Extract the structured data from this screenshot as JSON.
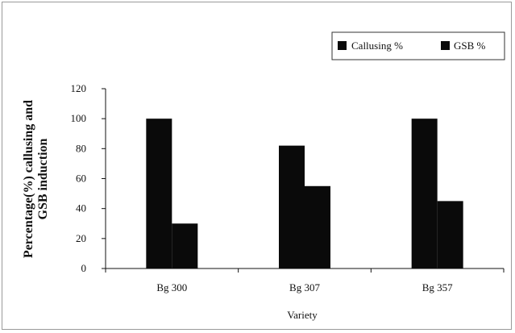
{
  "chart_data": {
    "type": "bar",
    "categories": [
      "Bg 300",
      "Bg 307",
      "Bg 357"
    ],
    "series": [
      {
        "name": "Callusing %",
        "values": [
          100,
          82,
          100
        ],
        "color": "#0a0a0a"
      },
      {
        "name": "GSB %",
        "values": [
          30,
          55,
          45
        ],
        "color": "#0a0a0a"
      }
    ],
    "yticks": [
      0,
      20,
      40,
      60,
      80,
      100,
      120
    ],
    "ylim": [
      0,
      120
    ],
    "ylabel_line1": "Percentage(%) callusing and",
    "ylabel_line2": "GSB induction",
    "xlabel": "Variety",
    "grid": false,
    "legend_position": "top-right"
  }
}
